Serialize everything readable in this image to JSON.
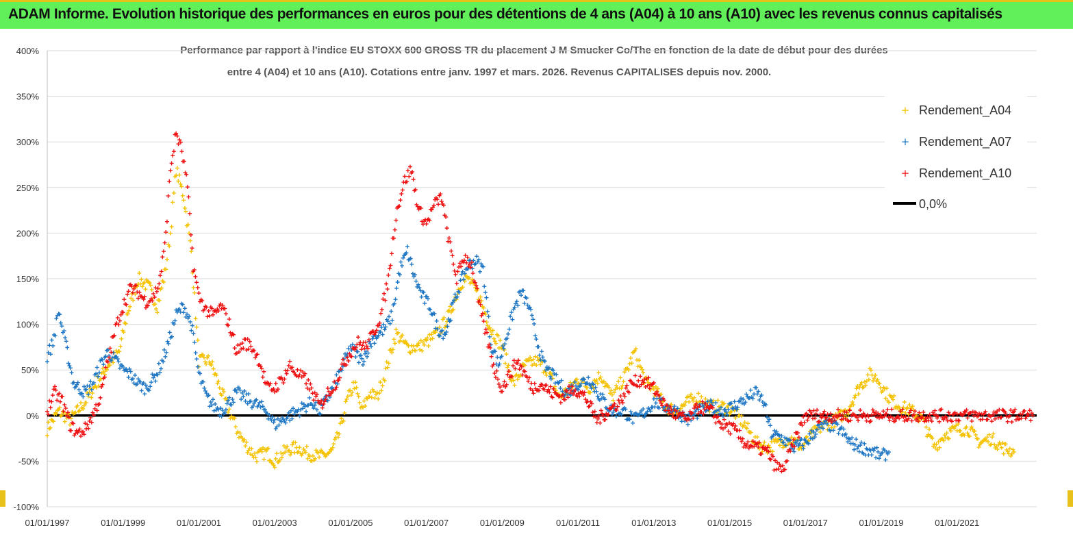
{
  "header": {
    "title": "ADAM Informe. Evolution historique des performances en euros pour des détentions de 4 ans (A04) à 10 ans (A10) avec les revenus connus capitalisés"
  },
  "colors": {
    "header_bg": "#62f05a",
    "a04": "#f5c200",
    "a07": "#1f77c4",
    "a10": "#ee1111",
    "zero": "#000000",
    "grid": "#d9d9d9"
  },
  "chart_data": {
    "type": "scatter",
    "title_lines": [
      "Performance par rapport à l'indice EU STOXX 600 GROSS TR  du placement J M Smucker Co/The en fonction de la date de début pour des durées",
      "entre 4 (A04) et 10 ans (A10). Cotations entre janv. 1997 et mars. 2026. Revenus CAPITALISES depuis nov. 2000."
    ],
    "xlabel": "",
    "ylabel": "",
    "xlim": [
      1997.0,
      2023.1
    ],
    "ylim": [
      -100,
      400
    ],
    "y_ticks": [
      400,
      350,
      300,
      250,
      200,
      150,
      100,
      50,
      0,
      -50,
      -100
    ],
    "y_tick_labels": [
      "400%",
      "350%",
      "300%",
      "250%",
      "200%",
      "150%",
      "100%",
      "50%",
      "0%",
      "-50%",
      "-100%"
    ],
    "x_ticks": [
      1997,
      1999,
      2001,
      2003,
      2005,
      2007,
      2009,
      2011,
      2013,
      2015,
      2017,
      2019,
      2021
    ],
    "x_tick_labels": [
      "01/01/1997",
      "01/01/1999",
      "01/01/2001",
      "01/01/2003",
      "01/01/2005",
      "01/01/2007",
      "01/01/2009",
      "01/01/2011",
      "01/01/2013",
      "01/01/2015",
      "01/01/2017",
      "01/01/2019",
      "01/01/2021"
    ],
    "legend_position": "top-right",
    "series": [
      {
        "name": "Rendement_A04",
        "marker": "plus",
        "x": [
          1997.0,
          1997.3,
          1997.6,
          1998.0,
          1998.3,
          1998.6,
          1998.9,
          1999.1,
          1999.4,
          1999.7,
          1999.9,
          2000.1,
          2000.25,
          2000.4,
          2000.6,
          2000.8,
          2001.0,
          2001.3,
          2001.6,
          2001.8,
          2002.0,
          2002.2,
          2002.5,
          2002.8,
          2003.0,
          2003.3,
          2003.6,
          2003.9,
          2004.2,
          2004.5,
          2004.7,
          2004.9,
          2005.1,
          2005.3,
          2005.5,
          2005.7,
          2005.9,
          2006.2,
          2006.5,
          2006.8,
          2007.0,
          2007.3,
          2007.6,
          2007.9,
          2008.1,
          2008.4,
          2008.7,
          2009.0,
          2009.3,
          2009.6,
          2009.9,
          2010.2,
          2010.5,
          2010.8,
          2011.0,
          2011.3,
          2011.6,
          2011.9,
          2012.2,
          2012.5,
          2012.8,
          2013.0,
          2013.3,
          2013.6,
          2013.9,
          2014.2,
          2014.5,
          2014.8,
          2015.1,
          2015.4,
          2015.7,
          2016.0,
          2016.3,
          2016.6,
          2016.9,
          2017.2,
          2017.5,
          2017.8,
          2018.1,
          2018.4,
          2018.7,
          2018.9,
          2019.2,
          2019.5,
          2019.8,
          2020.1,
          2020.4,
          2020.7,
          2021.0,
          2021.3,
          2021.6,
          2021.9,
          2022.2,
          2022.5
        ],
        "values": [
          -15,
          5,
          -5,
          15,
          35,
          55,
          70,
          110,
          150,
          140,
          120,
          155,
          200,
          270,
          240,
          180,
          60,
          60,
          25,
          5,
          -15,
          -30,
          -45,
          -40,
          -50,
          -38,
          -35,
          -42,
          -45,
          -40,
          -20,
          15,
          35,
          5,
          25,
          20,
          45,
          90,
          75,
          75,
          80,
          90,
          110,
          145,
          150,
          130,
          95,
          75,
          35,
          55,
          60,
          50,
          20,
          30,
          40,
          30,
          45,
          20,
          40,
          70,
          35,
          30,
          10,
          5,
          15,
          20,
          10,
          10,
          5,
          -10,
          -30,
          -35,
          -30,
          -25,
          -35,
          -20,
          -10,
          -5,
          5,
          30,
          45,
          40,
          20,
          10,
          5,
          -5,
          -35,
          -20,
          -15,
          -15,
          -30,
          -25,
          -35,
          -40
        ]
      },
      {
        "name": "Rendement_A07",
        "marker": "plus",
        "x": [
          1997.0,
          1997.15,
          1997.3,
          1997.5,
          1997.7,
          1998.0,
          1998.2,
          1998.4,
          1998.6,
          1998.8,
          1999.0,
          1999.2,
          1999.4,
          1999.6,
          1999.8,
          2000.0,
          2000.2,
          2000.4,
          2000.6,
          2000.8,
          2001.0,
          2001.2,
          2001.4,
          2001.6,
          2001.8,
          2002.0,
          2002.2,
          2002.4,
          2002.6,
          2002.8,
          2003.0,
          2003.2,
          2003.4,
          2003.6,
          2003.8,
          2004.0,
          2004.2,
          2004.4,
          2004.6,
          2004.8,
          2005.0,
          2005.3,
          2005.6,
          2005.9,
          2006.1,
          2006.3,
          2006.5,
          2006.7,
          2006.9,
          2007.1,
          2007.3,
          2007.5,
          2007.7,
          2007.9,
          2008.1,
          2008.3,
          2008.5,
          2008.7,
          2008.9,
          2009.1,
          2009.3,
          2009.5,
          2009.7,
          2009.9,
          2010.1,
          2010.4,
          2010.7,
          2011.0,
          2011.3,
          2011.6,
          2011.9,
          2012.2,
          2012.5,
          2012.8,
          2013.0,
          2013.3,
          2013.6,
          2013.9,
          2014.2,
          2014.5,
          2014.8,
          2015.1,
          2015.3,
          2015.5,
          2015.7,
          2015.9,
          2016.1,
          2016.4,
          2016.7,
          2017.0,
          2017.3,
          2017.6,
          2017.9,
          2018.2,
          2018.5,
          2018.8,
          2019.0,
          2019.2
        ],
        "values": [
          65,
          80,
          115,
          75,
          35,
          25,
          35,
          55,
          70,
          60,
          50,
          45,
          35,
          30,
          40,
          55,
          80,
          110,
          120,
          100,
          45,
          20,
          10,
          5,
          15,
          25,
          20,
          15,
          10,
          5,
          -10,
          -5,
          0,
          5,
          10,
          15,
          5,
          20,
          35,
          55,
          75,
          60,
          85,
          95,
          110,
          160,
          180,
          150,
          130,
          120,
          95,
          90,
          120,
          145,
          165,
          170,
          160,
          80,
          55,
          85,
          115,
          135,
          120,
          85,
          55,
          40,
          25,
          35,
          40,
          20,
          5,
          5,
          -5,
          5,
          15,
          10,
          5,
          -5,
          5,
          10,
          5,
          10,
          15,
          20,
          25,
          15,
          -20,
          -25,
          -35,
          -30,
          -15,
          -10,
          -15,
          -30,
          -35,
          -40,
          -45,
          -40
        ]
      },
      {
        "name": "Rendement_A10",
        "marker": "plus",
        "x": [
          1997.0,
          1997.2,
          1997.4,
          1997.6,
          1997.8,
          1998.0,
          1998.2,
          1998.4,
          1998.6,
          1998.8,
          1999.0,
          1999.2,
          1999.4,
          1999.6,
          1999.8,
          1999.95,
          2000.1,
          2000.25,
          2000.4,
          2000.55,
          2000.7,
          2000.85,
          2001.0,
          2001.2,
          2001.4,
          2001.6,
          2001.8,
          2002.0,
          2002.2,
          2002.4,
          2002.6,
          2002.8,
          2003.0,
          2003.2,
          2003.4,
          2003.6,
          2003.8,
          2004.0,
          2004.2,
          2004.4,
          2004.6,
          2004.8,
          2005.0,
          2005.2,
          2005.4,
          2005.6,
          2005.8,
          2006.0,
          2006.2,
          2006.4,
          2006.6,
          2006.8,
          2007.0,
          2007.2,
          2007.4,
          2007.6,
          2007.8,
          2008.0,
          2008.2,
          2008.4,
          2008.6,
          2008.8,
          2009.0,
          2009.2,
          2009.4,
          2009.6,
          2009.8,
          2010.0,
          2010.3,
          2010.6,
          2010.9,
          2011.2,
          2011.5,
          2011.8,
          2012.1,
          2012.4,
          2012.7,
          2013.0,
          2013.3,
          2013.6,
          2013.9,
          2014.2,
          2014.5,
          2014.8,
          2015.1,
          2015.4,
          2015.7,
          2016.0,
          2016.2,
          2016.4,
          2017.0,
          2018.0,
          2019.0,
          2020.0,
          2021.0,
          2022.0,
          2023.0
        ],
        "values": [
          5,
          25,
          15,
          -10,
          -20,
          -15,
          0,
          20,
          60,
          95,
          120,
          140,
          135,
          125,
          130,
          145,
          185,
          270,
          310,
          290,
          250,
          165,
          130,
          115,
          110,
          120,
          100,
          70,
          80,
          75,
          60,
          30,
          30,
          40,
          55,
          45,
          40,
          25,
          10,
          25,
          35,
          55,
          70,
          80,
          75,
          90,
          110,
          150,
          220,
          255,
          270,
          225,
          210,
          230,
          240,
          190,
          150,
          175,
          165,
          120,
          85,
          50,
          30,
          45,
          60,
          45,
          30,
          35,
          25,
          20,
          30,
          20,
          -5,
          5,
          15,
          35,
          40,
          30,
          10,
          0,
          -5,
          10,
          5,
          -10,
          -15,
          -30,
          -35,
          -40,
          -55,
          -60,
          0,
          0,
          0,
          0,
          0,
          0,
          0
        ]
      },
      {
        "name": "0,0%",
        "marker": "line",
        "x": [
          1997.0,
          2023.1
        ],
        "values": [
          0,
          0
        ]
      }
    ]
  }
}
